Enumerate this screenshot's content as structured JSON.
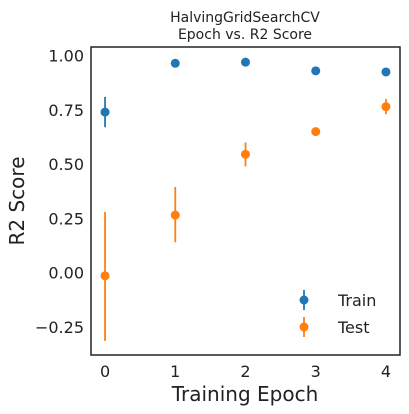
{
  "chart_data": {
    "type": "scatter",
    "title": "HalvingGridSearchCV",
    "subtitle": "Epoch vs. R2 Score",
    "xlabel": "Training Epoch",
    "ylabel": "R2 Score",
    "xlim": [
      -0.2,
      4.2
    ],
    "ylim": [
      -0.38,
      1.04
    ],
    "x_ticks": [
      "0",
      "1",
      "2",
      "3",
      "4"
    ],
    "y_ticks": [
      "−0.25",
      "0.00",
      "0.25",
      "0.50",
      "0.75",
      "1.00"
    ],
    "grid": false,
    "legend_position": "bottom-right",
    "series": [
      {
        "name": "Train",
        "color": "#1f77b4",
        "x": [
          0,
          1,
          2,
          3,
          4
        ],
        "y": [
          0.74,
          0.965,
          0.97,
          0.93,
          0.925
        ],
        "err_low": [
          0.67,
          0.96,
          0.965,
          0.925,
          0.92
        ],
        "err_high": [
          0.81,
          0.97,
          0.975,
          0.935,
          0.93
        ]
      },
      {
        "name": "Test",
        "color": "#ff7f0e",
        "x": [
          0,
          1,
          2,
          3,
          4
        ],
        "y": [
          -0.015,
          0.265,
          0.545,
          0.65,
          0.765
        ],
        "err_low": [
          -0.315,
          0.14,
          0.49,
          0.64,
          0.73
        ],
        "err_high": [
          0.28,
          0.395,
          0.6,
          0.66,
          0.8
        ]
      }
    ]
  }
}
